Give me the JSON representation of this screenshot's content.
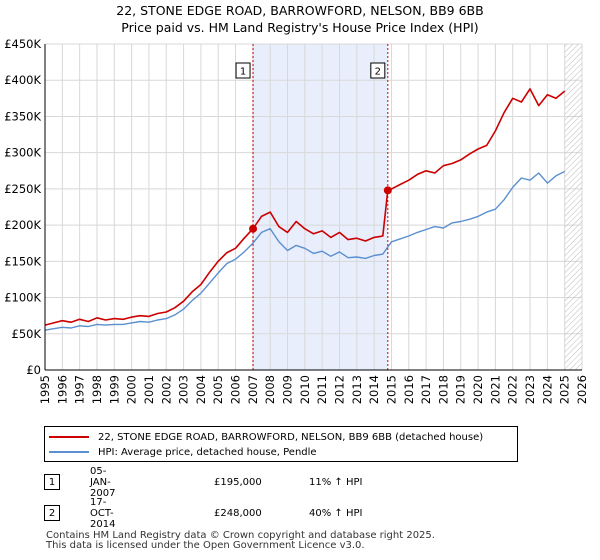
{
  "title": "22, STONE EDGE ROAD, BARROWFORD, NELSON, BB9 6BB",
  "subtitle": "Price paid vs. HM Land Registry's House Price Index (HPI)",
  "colors": {
    "property": "#cc0000",
    "hpi": "#5b8fd0",
    "shade": "#e8eefb",
    "grid": "#d8d8d8",
    "marker_line": "#cc0000"
  },
  "chart_data": {
    "type": "line",
    "title": "22, STONE EDGE ROAD, BARROWFORD, NELSON, BB9 6BB",
    "subtitle": "Price paid vs. HM Land Registry's House Price Index (HPI)",
    "xlabel": "",
    "ylabel": "",
    "xlim": [
      1995,
      2026
    ],
    "ylim": [
      0,
      450000
    ],
    "yticks": [
      {
        "value": 0,
        "label": "£0"
      },
      {
        "value": 50000,
        "label": "£50K"
      },
      {
        "value": 100000,
        "label": "£100K"
      },
      {
        "value": 150000,
        "label": "£150K"
      },
      {
        "value": 200000,
        "label": "£200K"
      },
      {
        "value": 250000,
        "label": "£250K"
      },
      {
        "value": 300000,
        "label": "£300K"
      },
      {
        "value": 350000,
        "label": "£350K"
      },
      {
        "value": 400000,
        "label": "£400K"
      },
      {
        "value": 450000,
        "label": "£450K"
      }
    ],
    "xticks": [
      1995,
      1996,
      1997,
      1998,
      1999,
      2000,
      2001,
      2002,
      2003,
      2004,
      2005,
      2006,
      2007,
      2008,
      2009,
      2010,
      2011,
      2012,
      2013,
      2014,
      2015,
      2016,
      2017,
      2018,
      2019,
      2020,
      2021,
      2022,
      2023,
      2024,
      2025,
      2026
    ],
    "grid": true,
    "shaded_region": [
      2007.01,
      2014.79
    ],
    "future_hatch_from": 2025.0,
    "series": [
      {
        "name": "22, STONE EDGE ROAD, BARROWFORD, NELSON, BB9 6BB (detached house)",
        "color": "#cc0000",
        "x": [
          1995.0,
          1995.5,
          1996.0,
          1996.5,
          1997.0,
          1997.5,
          1998.0,
          1998.5,
          1999.0,
          1999.5,
          2000.0,
          2000.5,
          2001.0,
          2001.5,
          2002.0,
          2002.5,
          2003.0,
          2003.5,
          2004.0,
          2004.5,
          2005.0,
          2005.5,
          2006.0,
          2006.5,
          2007.01,
          2007.5,
          2008.0,
          2008.5,
          2009.0,
          2009.5,
          2010.0,
          2010.5,
          2011.0,
          2011.5,
          2012.0,
          2012.5,
          2013.0,
          2013.5,
          2014.0,
          2014.5,
          2014.79,
          2015.0,
          2015.5,
          2016.0,
          2016.5,
          2017.0,
          2017.5,
          2018.0,
          2018.5,
          2019.0,
          2019.5,
          2020.0,
          2020.5,
          2021.0,
          2021.5,
          2022.0,
          2022.5,
          2023.0,
          2023.5,
          2024.0,
          2024.5,
          2025.0
        ],
        "values": [
          62000,
          65000,
          68000,
          66000,
          70000,
          67000,
          72000,
          69000,
          71000,
          70000,
          73000,
          75000,
          74000,
          78000,
          80000,
          86000,
          95000,
          108000,
          118000,
          135000,
          150000,
          162000,
          168000,
          182000,
          195000,
          212000,
          218000,
          198000,
          190000,
          205000,
          195000,
          188000,
          192000,
          183000,
          190000,
          180000,
          182000,
          178000,
          183000,
          185000,
          248000,
          250000,
          256000,
          262000,
          270000,
          275000,
          272000,
          282000,
          285000,
          290000,
          298000,
          305000,
          310000,
          330000,
          355000,
          375000,
          370000,
          388000,
          365000,
          380000,
          375000,
          385000
        ]
      },
      {
        "name": "HPI: Average price, detached house, Pendle",
        "color": "#5b8fd0",
        "x": [
          1995.0,
          1995.5,
          1996.0,
          1996.5,
          1997.0,
          1997.5,
          1998.0,
          1998.5,
          1999.0,
          1999.5,
          2000.0,
          2000.5,
          2001.0,
          2001.5,
          2002.0,
          2002.5,
          2003.0,
          2003.5,
          2004.0,
          2004.5,
          2005.0,
          2005.5,
          2006.0,
          2006.5,
          2007.0,
          2007.5,
          2008.0,
          2008.5,
          2009.0,
          2009.5,
          2010.0,
          2010.5,
          2011.0,
          2011.5,
          2012.0,
          2012.5,
          2013.0,
          2013.5,
          2014.0,
          2014.5,
          2015.0,
          2015.5,
          2016.0,
          2016.5,
          2017.0,
          2017.5,
          2018.0,
          2018.5,
          2019.0,
          2019.5,
          2020.0,
          2020.5,
          2021.0,
          2021.5,
          2022.0,
          2022.5,
          2023.0,
          2023.5,
          2024.0,
          2024.5,
          2025.0
        ],
        "values": [
          55000,
          57000,
          59000,
          58000,
          61000,
          60000,
          63000,
          62000,
          63000,
          63000,
          65000,
          67000,
          66000,
          69000,
          71000,
          76000,
          84000,
          96000,
          106000,
          120000,
          134000,
          147000,
          153000,
          163000,
          175000,
          190000,
          195000,
          177000,
          165000,
          172000,
          168000,
          161000,
          164000,
          157000,
          163000,
          155000,
          156000,
          154000,
          158000,
          160000,
          177000,
          181000,
          185000,
          190000,
          194000,
          198000,
          196000,
          203000,
          205000,
          208000,
          212000,
          218000,
          222000,
          235000,
          252000,
          265000,
          262000,
          272000,
          258000,
          268000,
          274000
        ]
      }
    ],
    "annotations": [
      {
        "label": "1",
        "x": 2007.01,
        "value": 195000
      },
      {
        "label": "2",
        "x": 2014.79,
        "value": 248000
      }
    ]
  },
  "legend": {
    "property_label": "22, STONE EDGE ROAD, BARROWFORD, NELSON, BB9 6BB (detached house)",
    "hpi_label": "HPI: Average price, detached house, Pendle"
  },
  "transactions": [
    {
      "num": "1",
      "date": "05-JAN-2007",
      "price": "£195,000",
      "hpi": "11% ↑ HPI"
    },
    {
      "num": "2",
      "date": "17-OCT-2014",
      "price": "£248,000",
      "hpi": "40% ↑ HPI"
    }
  ],
  "footer": {
    "line1": "Contains HM Land Registry data © Crown copyright and database right 2025.",
    "line2": "This data is licensed under the Open Government Licence v3.0."
  }
}
